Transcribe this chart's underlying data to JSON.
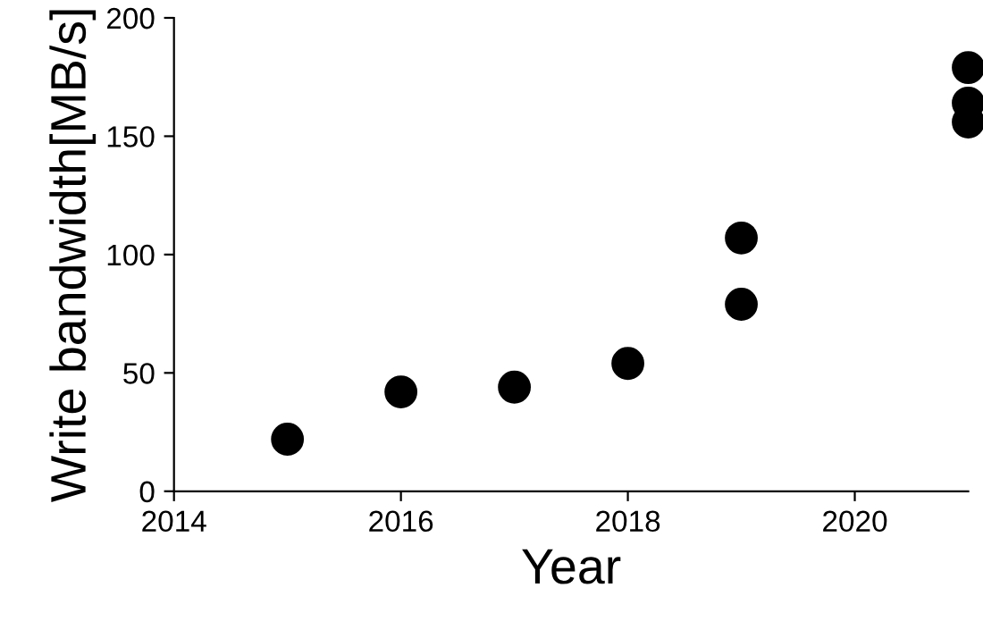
{
  "chart_data": {
    "type": "scatter",
    "xlabel": "Year",
    "ylabel": "Write bandwidth[MB/s]",
    "series": [
      {
        "color": "#000000",
        "x": [
          2015,
          2016,
          2017,
          2018,
          2019,
          2019,
          2021,
          2021,
          2021
        ],
        "values": [
          22,
          42,
          44,
          54,
          79,
          107,
          179,
          164,
          156
        ]
      }
    ],
    "xlim": [
      2014,
      2021
    ],
    "xticks": [
      2014,
      2016,
      2018,
      2020
    ],
    "ylim": [
      0,
      200
    ],
    "yticks": [
      0,
      50,
      100,
      150,
      200
    ],
    "marker": "circle",
    "grid": false,
    "legend": false
  }
}
